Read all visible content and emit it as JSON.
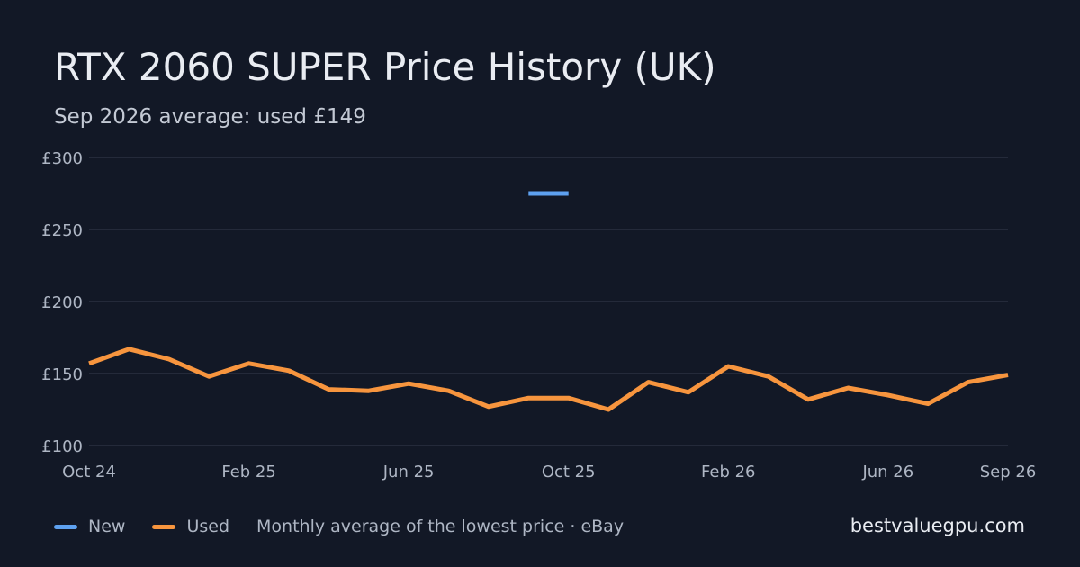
{
  "header": {
    "title": "RTX 2060 SUPER Price History (UK)",
    "subtitle": "Sep 2026 average: used £149"
  },
  "legend": {
    "note": "Monthly average of the lowest price · eBay"
  },
  "footer": {
    "source": "bestvaluegpu.com"
  },
  "colors": {
    "background": "#121826",
    "grid": "#2a3140",
    "new": "#5ea1f0",
    "used": "#f7953e",
    "tick": "#aeb6c4"
  },
  "chart_data": {
    "type": "line",
    "x": [
      "Oct 24",
      "Nov 24",
      "Dec 24",
      "Jan 25",
      "Feb 25",
      "Mar 25",
      "Apr 25",
      "May 25",
      "Jun 25",
      "Jul 25",
      "Aug 25",
      "Sep 25",
      "Oct 25",
      "Nov 25",
      "Dec 25",
      "Jan 26",
      "Feb 26",
      "Mar 26",
      "Apr 26",
      "May 26",
      "Jun 26",
      "Jul 26",
      "Aug 26",
      "Sep 26"
    ],
    "x_tick_labels": [
      "Oct 24",
      "Feb 25",
      "Jun 25",
      "Oct 25",
      "Feb 26",
      "Jun 26",
      "Sep 26"
    ],
    "y_tick_labels": [
      "£300",
      "£250",
      "£200",
      "£150",
      "£100"
    ],
    "ylim": [
      100,
      300
    ],
    "grid": true,
    "legend_position": "bottom-left",
    "series": [
      {
        "name": "New",
        "color": "#5ea1f0",
        "values": [
          null,
          null,
          null,
          null,
          null,
          null,
          null,
          null,
          null,
          null,
          null,
          275,
          275,
          null,
          null,
          null,
          null,
          null,
          null,
          null,
          null,
          null,
          null,
          null
        ]
      },
      {
        "name": "Used",
        "color": "#f7953e",
        "values": [
          157,
          167,
          160,
          148,
          157,
          152,
          139,
          138,
          143,
          138,
          127,
          133,
          133,
          125,
          144,
          137,
          155,
          148,
          132,
          140,
          135,
          129,
          144,
          149
        ]
      }
    ]
  }
}
